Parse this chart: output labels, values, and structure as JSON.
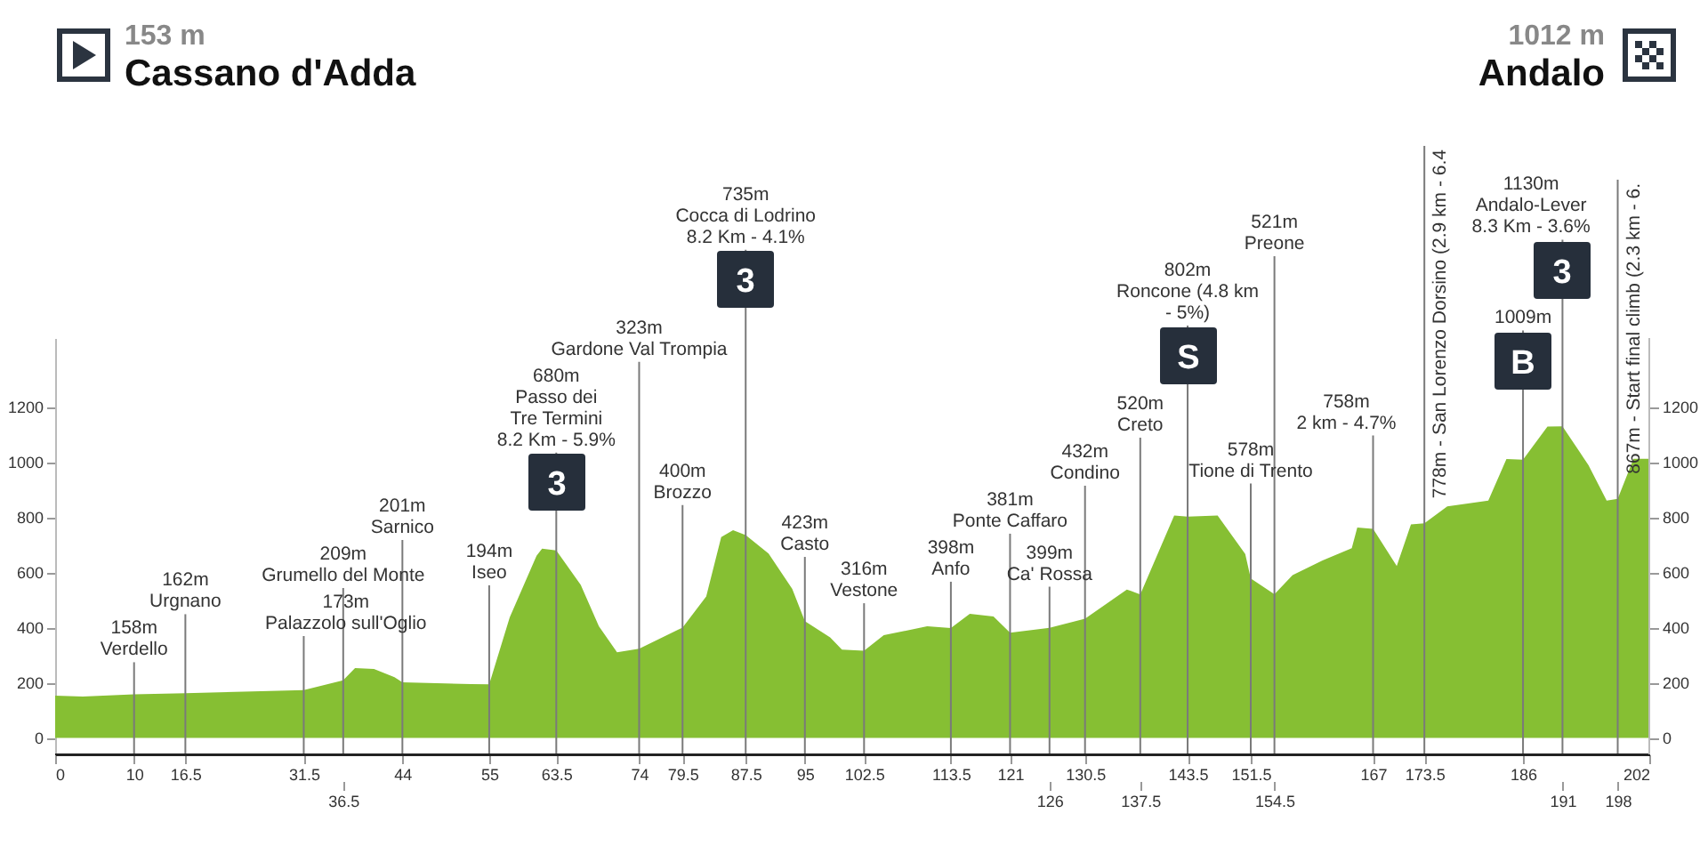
{
  "chart_data": {
    "type": "area",
    "title": "Cassano d'Adda",
    "subtitle": "153 m",
    "annotations": [
      "1012 m",
      "Andalo",
      {
        "text": "3",
        "x": 63.5
      },
      {
        "text": "3",
        "x": 87.5
      },
      {
        "text": "S",
        "x": 143.5
      },
      {
        "text": "B",
        "x": 186
      },
      {
        "text": "3",
        "x": 191
      }
    ],
    "x": [
      0,
      3.5,
      10,
      16.5,
      25,
      31.5,
      36.5,
      38,
      40.4,
      43,
      44,
      52.7,
      55,
      57.6,
      61,
      61.7,
      63.5,
      66.6,
      68.9,
      71.2,
      74,
      79.5,
      82.5,
      84.4,
      85.9,
      87.5,
      90.4,
      93.4,
      95,
      98.2,
      99.7,
      102.5,
      105,
      110.5,
      113.5,
      115.9,
      118.9,
      121,
      126,
      130.5,
      135.8,
      137.5,
      141.8,
      143.5,
      147.3,
      150.8,
      151.5,
      154.5,
      156.8,
      160.6,
      164.3,
      165,
      167,
      170,
      171.8,
      173.5,
      176.4,
      181.6,
      183.9,
      186,
      189.1,
      191,
      194.3,
      196.6,
      198,
      200,
      202
    ],
    "series": [
      {
        "color": "#86bf33",
        "values": [
          153,
          150,
          158,
          162,
          168,
          173,
          209,
          253,
          250,
          220,
          201,
          195,
          194,
          437,
          660,
          686,
          680,
          555,
          405,
          310,
          323,
          400,
          513,
          728,
          753,
          735,
          668,
          540,
          423,
          364,
          320,
          316,
          372,
          405,
          398,
          450,
          440,
          381,
          399,
          432,
          538,
          520,
          806,
          802,
          806,
          667,
          578,
          521,
          590,
          643,
          688,
          763,
          758,
          623,
          774,
          778,
          839,
          860,
          1011,
          1009,
          1129,
          1130,
          989,
          860,
          867,
          1012,
          1012
        ]
      }
    ],
    "xlim": [
      0,
      202
    ],
    "xticks": [
      0,
      10,
      16.5,
      31.5,
      44,
      55,
      63.5,
      74,
      79.5,
      87.5,
      95,
      102.5,
      113.5,
      121,
      130.5,
      143.5,
      151.5,
      167,
      173.5,
      186,
      202
    ],
    "x2lim": [
      0,
      202
    ],
    "x2ticks": [
      36.5,
      126,
      137.5,
      154.5,
      191,
      198
    ],
    "ylim": [
      -60,
      1450
    ],
    "yticks": [
      0,
      200,
      400,
      600,
      800,
      1000,
      1200
    ],
    "y2lim": [
      -60,
      1450
    ],
    "y2ticks": [
      0,
      200,
      400,
      600,
      800,
      1000,
      1200
    ],
    "ref_lines": [
      {
        "axis": "x",
        "value": 10,
        "label": "158m\nVerdello"
      },
      {
        "axis": "x",
        "value": 16.5,
        "label": "162m\nUrgnano"
      },
      {
        "axis": "x",
        "value": 31.5,
        "label": "173m\nPalazzolo sull'Oglio"
      },
      {
        "axis": "x",
        "value": 36.5,
        "label": "209m\nGrumello del Monte"
      },
      {
        "axis": "x",
        "value": 44,
        "label": "201m\nSarnico"
      },
      {
        "axis": "x",
        "value": 55,
        "label": "194m\nIseo"
      },
      {
        "axis": "x",
        "value": 63.5,
        "label": "680m\nPasso dei\nTre Termini\n8.2 Km - 5.9%"
      },
      {
        "axis": "x",
        "value": 74,
        "label": "323m\nGardone Val Trompia"
      },
      {
        "axis": "x",
        "value": 79.5,
        "label": "400m\nBrozzo"
      },
      {
        "axis": "x",
        "value": 87.5,
        "label": "735m\nCocca di Lodrino\n8.2 Km - 4.1%"
      },
      {
        "axis": "x",
        "value": 95,
        "label": "423m\nCasto"
      },
      {
        "axis": "x",
        "value": 102.5,
        "label": "316m\nVestone"
      },
      {
        "axis": "x",
        "value": 113.5,
        "label": "398m\nAnfo"
      },
      {
        "axis": "x",
        "value": 121,
        "label": "381m\nPonte Caffaro"
      },
      {
        "axis": "x",
        "value": 126,
        "label": "399m\nCa' Rossa"
      },
      {
        "axis": "x",
        "value": 130.5,
        "label": "432m\nCondino"
      },
      {
        "axis": "x",
        "value": 137.5,
        "label": "520m\nCreto"
      },
      {
        "axis": "x",
        "value": 143.5,
        "label": "802m\nRoncone (4.8 km\n- 5%)"
      },
      {
        "axis": "x",
        "value": 151.5,
        "label": "578m\nTione di Trento"
      },
      {
        "axis": "x",
        "value": 154.5,
        "label": "521m\nPreone"
      },
      {
        "axis": "x",
        "value": 167,
        "label": "758m\n2 km - 4.7%"
      },
      {
        "axis": "x",
        "value": 173.5,
        "label": "778m - San Lorenzo Dorsino (2.9 km - 6.4"
      },
      {
        "axis": "x",
        "value": 186,
        "label": "1009m"
      },
      {
        "axis": "x",
        "value": 191,
        "label": "1130m\nAndalo-Lever\n8.3 Km - 3.6%"
      },
      {
        "axis": "x",
        "value": 198,
        "label": "867m - Start final climb (2.3 km - 6."
      }
    ]
  }
}
